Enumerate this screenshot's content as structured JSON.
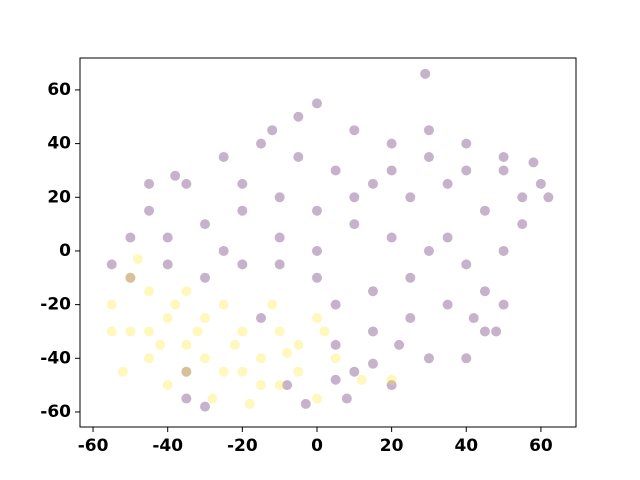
{
  "chart_data": {
    "type": "scatter",
    "xlim": [
      -63.5,
      69.4
    ],
    "ylim": [
      -65.6,
      71.9
    ],
    "xticks": [
      -60,
      -40,
      -20,
      0,
      20,
      40,
      60
    ],
    "yticks": [
      -60,
      -40,
      -20,
      0,
      20,
      40,
      60
    ],
    "opacity": 0.3,
    "series": [
      {
        "color": "#440154",
        "x": [
          -5,
          0,
          10,
          20,
          30,
          40,
          50,
          60,
          55,
          45,
          35,
          25,
          15,
          5,
          -5,
          -15,
          -25,
          -35,
          -45,
          -50,
          -40,
          -30,
          -20,
          -10,
          0,
          10,
          20,
          30,
          40,
          50,
          55,
          62,
          45,
          35,
          25,
          15,
          5,
          10,
          20,
          30,
          40,
          45,
          50,
          0,
          -10,
          -20,
          -30,
          -40,
          -50,
          -55,
          0,
          10,
          20,
          30,
          -10,
          -25,
          5,
          15,
          25,
          35,
          -30,
          -35,
          -3,
          8,
          29,
          -12,
          -20,
          40,
          50,
          58,
          -35,
          -15,
          -8,
          5,
          15,
          22,
          42,
          48,
          -45,
          -38
        ],
        "values": [
          50,
          55,
          45,
          40,
          35,
          40,
          30,
          25,
          20,
          15,
          25,
          20,
          25,
          30,
          35,
          40,
          35,
          25,
          15,
          5,
          5,
          10,
          15,
          20,
          15,
          10,
          5,
          0,
          -5,
          0,
          10,
          20,
          -15,
          -20,
          -25,
          -30,
          -35,
          -45,
          -50,
          -40,
          -40,
          -30,
          -20,
          -10,
          -5,
          -5,
          -10,
          -5,
          -10,
          -5,
          0,
          20,
          30,
          45,
          5,
          0,
          -20,
          -15,
          -10,
          5,
          -58,
          -55,
          -57,
          -55,
          66,
          45,
          25,
          30,
          35,
          33,
          -45,
          -25,
          -50,
          -48,
          -42,
          -35,
          -25,
          -30,
          25,
          28
        ]
      },
      {
        "color": "#fde725",
        "x": [
          -55,
          -50,
          -45,
          -40,
          -35,
          -30,
          -25,
          -20,
          -15,
          -10,
          -5,
          0,
          5,
          -50,
          -45,
          -35,
          -25,
          -15,
          -30,
          -20,
          -10,
          -40,
          -45,
          -52,
          -28,
          -18,
          -5,
          0,
          2,
          -35,
          -42,
          -8,
          -22,
          -32,
          12,
          20,
          -48,
          -55,
          -38,
          -12
        ],
        "values": [
          -20,
          -30,
          -40,
          -50,
          -35,
          -25,
          -20,
          -30,
          -40,
          -50,
          -35,
          -25,
          -40,
          -10,
          -15,
          -45,
          -45,
          -50,
          -40,
          -45,
          -30,
          -25,
          -30,
          -45,
          -55,
          -57,
          -45,
          -55,
          -30,
          -15,
          -35,
          -38,
          -35,
          -30,
          -48,
          -48,
          -3,
          -30,
          -20,
          -20
        ]
      }
    ]
  }
}
